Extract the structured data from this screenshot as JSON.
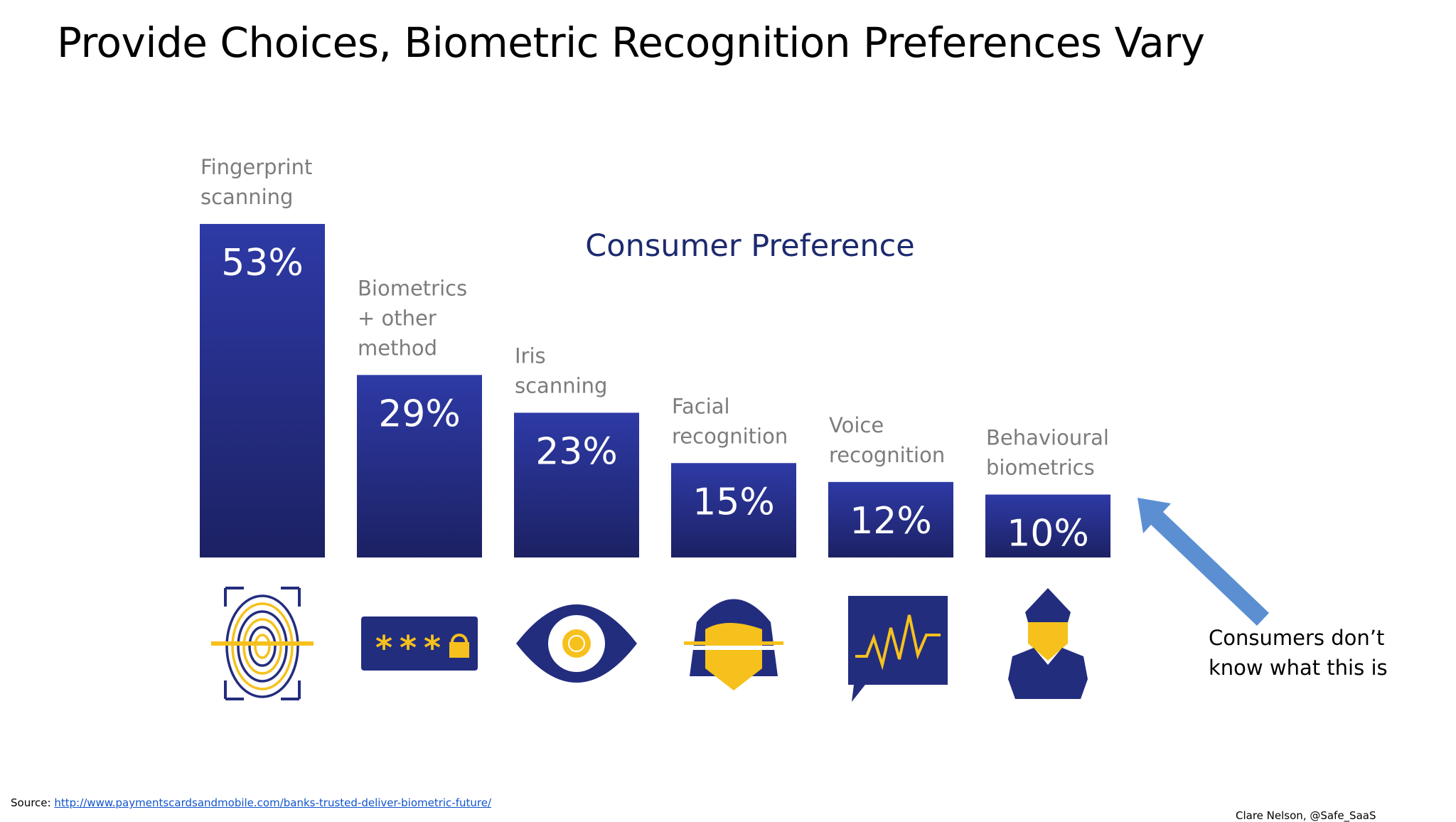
{
  "slide": {
    "title": "Provide Choices, Biometric Recognition Preferences Vary",
    "annotation": "Consumers don’t\nknow what this is",
    "source_label": "Source:",
    "source_link": "http://www.paymentscardsandmobile.com/banks-trusted-deliver-biometric-future/",
    "credit": "Clare Nelson, @Safe_SaaS"
  },
  "colors": {
    "bar_top": "#2e3aa6",
    "bar_bottom": "#1c2163",
    "icon_navy": "#232d7e",
    "icon_yellow": "#f6c11c",
    "arrow": "#5b8fd2",
    "subtitle": "#1d2a6e"
  },
  "chart_data": {
    "type": "bar",
    "title": "Consumer Preference",
    "categories": [
      [
        "Fingerprint",
        "scanning"
      ],
      [
        "Biometrics",
        "+ other",
        "method"
      ],
      [
        "Iris",
        "scanning"
      ],
      [
        "Facial",
        "recognition"
      ],
      [
        "Voice",
        "recognition"
      ],
      [
        "Behavioural",
        "biometrics"
      ]
    ],
    "values": [
      53,
      29,
      23,
      15,
      12,
      10
    ],
    "value_labels": [
      "53%",
      "29%",
      "23%",
      "15%",
      "12%",
      "10%"
    ],
    "icons": [
      "fingerprint-icon",
      "password-lock-icon",
      "eye-icon",
      "face-scan-icon",
      "voice-wave-icon",
      "person-icon"
    ],
    "unit": "%",
    "grid": false,
    "legend": "none"
  }
}
